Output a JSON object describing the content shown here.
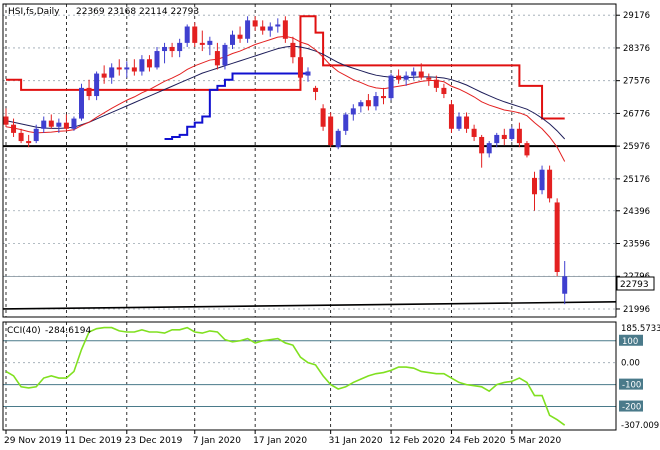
{
  "header": {
    "symbol": "HSI,fs,Daily",
    "ohlc": "22369 23168 22114 22793"
  },
  "colors": {
    "bull": "#3f3fcf",
    "bear": "#e32020",
    "ma_fast": "#e32020",
    "ma_slow": "#1e1e5a",
    "envelope_upper": "#e01010",
    "envelope_lower": "#1010d0",
    "cci": "#80e020",
    "level_line": "#4a7a8a"
  },
  "chart_data": [
    {
      "type": "candlestick",
      "title": "",
      "header": "HSI,fs,Daily  22369 23168 22114 22793",
      "ylim": [
        21800,
        29450
      ],
      "y_ticks": [
        29176,
        28376,
        27576,
        26776,
        25976,
        25176,
        24396,
        23596,
        22796,
        21996
      ],
      "current_price": 22793,
      "current_price_label": "22793",
      "x_ticks": [
        "29 Nov 2019",
        "11 Dec 2019",
        "23 Dec 2019",
        "7 Jan 2020",
        "17 Jan 2020",
        "31 Jan 2020",
        "12 Feb 2020",
        "24 Feb 2020",
        "5 Mar 2020"
      ],
      "candles": [
        {
          "o": 26700,
          "h": 26900,
          "l": 26450,
          "c": 26500
        },
        {
          "o": 26500,
          "h": 26650,
          "l": 26200,
          "c": 26300
        },
        {
          "o": 26300,
          "h": 26400,
          "l": 26050,
          "c": 26100
        },
        {
          "o": 26100,
          "h": 26250,
          "l": 25950,
          "c": 26050
        },
        {
          "o": 26100,
          "h": 26500,
          "l": 26050,
          "c": 26400
        },
        {
          "o": 26400,
          "h": 26700,
          "l": 26300,
          "c": 26600
        },
        {
          "o": 26600,
          "h": 26750,
          "l": 26400,
          "c": 26450
        },
        {
          "o": 26450,
          "h": 26650,
          "l": 26300,
          "c": 26550
        },
        {
          "o": 26550,
          "h": 26750,
          "l": 26350,
          "c": 26400
        },
        {
          "o": 26400,
          "h": 26700,
          "l": 26350,
          "c": 26650
        },
        {
          "o": 26650,
          "h": 27500,
          "l": 26600,
          "c": 27400
        },
        {
          "o": 27400,
          "h": 27600,
          "l": 27100,
          "c": 27200
        },
        {
          "o": 27200,
          "h": 27800,
          "l": 27100,
          "c": 27750
        },
        {
          "o": 27750,
          "h": 27950,
          "l": 27500,
          "c": 27650
        },
        {
          "o": 27650,
          "h": 28000,
          "l": 27500,
          "c": 27900
        },
        {
          "o": 27900,
          "h": 28100,
          "l": 27700,
          "c": 27850
        },
        {
          "o": 27850,
          "h": 28050,
          "l": 27650,
          "c": 27900
        },
        {
          "o": 27900,
          "h": 28100,
          "l": 27700,
          "c": 27800
        },
        {
          "o": 27800,
          "h": 28200,
          "l": 27700,
          "c": 28100
        },
        {
          "o": 28100,
          "h": 28200,
          "l": 27800,
          "c": 27900
        },
        {
          "o": 27900,
          "h": 28400,
          "l": 27850,
          "c": 28300
        },
        {
          "o": 28300,
          "h": 28500,
          "l": 28000,
          "c": 28400
        },
        {
          "o": 28400,
          "h": 28500,
          "l": 28150,
          "c": 28300
        },
        {
          "o": 28300,
          "h": 28600,
          "l": 28150,
          "c": 28500
        },
        {
          "o": 28500,
          "h": 28950,
          "l": 28400,
          "c": 28900
        },
        {
          "o": 28900,
          "h": 29000,
          "l": 28400,
          "c": 28500
        },
        {
          "o": 28500,
          "h": 28800,
          "l": 28300,
          "c": 28450
        },
        {
          "o": 28450,
          "h": 28650,
          "l": 28200,
          "c": 28550
        },
        {
          "o": 28300,
          "h": 28500,
          "l": 27850,
          "c": 27950
        },
        {
          "o": 27950,
          "h": 28500,
          "l": 27850,
          "c": 28450
        },
        {
          "o": 28450,
          "h": 28800,
          "l": 28350,
          "c": 28700
        },
        {
          "o": 28700,
          "h": 28900,
          "l": 28500,
          "c": 28600
        },
        {
          "o": 28600,
          "h": 29150,
          "l": 28500,
          "c": 29050
        },
        {
          "o": 29050,
          "h": 29150,
          "l": 28800,
          "c": 28900
        },
        {
          "o": 28900,
          "h": 29050,
          "l": 28700,
          "c": 28800
        },
        {
          "o": 28800,
          "h": 29000,
          "l": 28650,
          "c": 28900
        },
        {
          "o": 28900,
          "h": 29100,
          "l": 28750,
          "c": 28950
        },
        {
          "o": 29050,
          "h": 29150,
          "l": 28500,
          "c": 28600
        },
        {
          "o": 28500,
          "h": 28650,
          "l": 28000,
          "c": 28150
        },
        {
          "o": 28150,
          "h": 28300,
          "l": 27500,
          "c": 27650
        },
        {
          "o": 27700,
          "h": 27900,
          "l": 27550,
          "c": 27800
        },
        {
          "o": 27400,
          "h": 27450,
          "l": 27100,
          "c": 27300
        },
        {
          "o": 26900,
          "h": 27000,
          "l": 26350,
          "c": 26450
        },
        {
          "o": 26700,
          "h": 26800,
          "l": 25950,
          "c": 26000
        },
        {
          "o": 25950,
          "h": 26400,
          "l": 25900,
          "c": 26350
        },
        {
          "o": 26350,
          "h": 26800,
          "l": 26250,
          "c": 26750
        },
        {
          "o": 26750,
          "h": 27000,
          "l": 26600,
          "c": 26900
        },
        {
          "o": 26950,
          "h": 27100,
          "l": 26800,
          "c": 27050
        },
        {
          "o": 27100,
          "h": 27250,
          "l": 26850,
          "c": 26950
        },
        {
          "o": 26950,
          "h": 27300,
          "l": 26850,
          "c": 27200
        },
        {
          "o": 27200,
          "h": 27400,
          "l": 27000,
          "c": 27150
        },
        {
          "o": 27150,
          "h": 27750,
          "l": 27100,
          "c": 27700
        },
        {
          "o": 27700,
          "h": 27850,
          "l": 27500,
          "c": 27600
        },
        {
          "o": 27600,
          "h": 27800,
          "l": 27450,
          "c": 27700
        },
        {
          "o": 27700,
          "h": 27900,
          "l": 27600,
          "c": 27800
        },
        {
          "o": 27800,
          "h": 28000,
          "l": 27600,
          "c": 27650
        },
        {
          "o": 27650,
          "h": 27750,
          "l": 27450,
          "c": 27600
        },
        {
          "o": 27600,
          "h": 27700,
          "l": 27300,
          "c": 27400
        },
        {
          "o": 27400,
          "h": 27500,
          "l": 27150,
          "c": 27250
        },
        {
          "o": 27000,
          "h": 27100,
          "l": 26300,
          "c": 26400
        },
        {
          "o": 26400,
          "h": 26800,
          "l": 26350,
          "c": 26700
        },
        {
          "o": 26700,
          "h": 26800,
          "l": 26300,
          "c": 26400
        },
        {
          "o": 26400,
          "h": 26500,
          "l": 26100,
          "c": 26200
        },
        {
          "o": 26200,
          "h": 26250,
          "l": 25450,
          "c": 25800
        },
        {
          "o": 25800,
          "h": 26100,
          "l": 25700,
          "c": 26050
        },
        {
          "o": 26050,
          "h": 26300,
          "l": 25950,
          "c": 26250
        },
        {
          "o": 26250,
          "h": 26400,
          "l": 26000,
          "c": 26150
        },
        {
          "o": 26150,
          "h": 26450,
          "l": 26100,
          "c": 26400
        },
        {
          "o": 26400,
          "h": 26550,
          "l": 25950,
          "c": 26050
        },
        {
          "o": 26050,
          "h": 26100,
          "l": 25700,
          "c": 25750
        },
        {
          "o": 25200,
          "h": 25350,
          "l": 24400,
          "c": 24800
        },
        {
          "o": 24900,
          "h": 25500,
          "l": 24800,
          "c": 25400
        },
        {
          "o": 25400,
          "h": 25500,
          "l": 24600,
          "c": 24700
        },
        {
          "o": 24600,
          "h": 24700,
          "l": 22800,
          "c": 22900
        },
        {
          "o": 22369,
          "h": 23168,
          "l": 22114,
          "c": 22793
        }
      ],
      "ma_fast": [
        26450,
        26420,
        26380,
        26330,
        26300,
        26310,
        26320,
        26340,
        26350,
        26380,
        26480,
        26560,
        26680,
        26790,
        26900,
        27000,
        27100,
        27180,
        27280,
        27360,
        27460,
        27560,
        27640,
        27730,
        27850,
        27940,
        28010,
        28080,
        28100,
        28160,
        28240,
        28300,
        28380,
        28460,
        28520,
        28580,
        28640,
        28660,
        28620,
        28520,
        28460,
        28330,
        28150,
        27950,
        27800,
        27700,
        27600,
        27530,
        27450,
        27400,
        27380,
        27410,
        27440,
        27470,
        27520,
        27560,
        27580,
        27580,
        27550,
        27440,
        27370,
        27280,
        27180,
        27060,
        26980,
        26920,
        26860,
        26830,
        26790,
        26720,
        26550,
        26400,
        26200,
        25950,
        25600
      ],
      "ma_slow": [
        26600,
        26560,
        26520,
        26480,
        26440,
        26420,
        26410,
        26410,
        26420,
        26440,
        26500,
        26560,
        26640,
        26720,
        26800,
        26880,
        26960,
        27040,
        27120,
        27200,
        27280,
        27360,
        27440,
        27520,
        27600,
        27680,
        27760,
        27820,
        27880,
        27940,
        28000,
        28060,
        28120,
        28180,
        28240,
        28300,
        28360,
        28400,
        28420,
        28400,
        28360,
        28300,
        28220,
        28120,
        28020,
        27940,
        27880,
        27820,
        27760,
        27710,
        27680,
        27660,
        27650,
        27650,
        27660,
        27670,
        27670,
        27660,
        27640,
        27600,
        27540,
        27470,
        27380,
        27290,
        27210,
        27130,
        27060,
        27000,
        26940,
        26880,
        26780,
        26660,
        26520,
        26350,
        26150
      ],
      "envelope_upper": [
        27600,
        27600,
        27350,
        27350,
        27350,
        27350,
        27350,
        27350,
        27350,
        27350,
        27350,
        27350,
        27350,
        27350,
        27350,
        27350,
        27350,
        27350,
        27350,
        27350,
        27350,
        27350,
        27350,
        27350,
        27350,
        27350,
        27350,
        27350,
        27350,
        27350,
        27350,
        27350,
        27350,
        27350,
        27350,
        27350,
        27350,
        27350,
        27350,
        29150,
        29150,
        28750,
        27950,
        27950,
        27950,
        27950,
        27950,
        27950,
        27950,
        27950,
        27950,
        27950,
        27950,
        27950,
        27950,
        27950,
        27950,
        27950,
        27950,
        27950,
        27950,
        27950,
        27950,
        27950,
        27950,
        27950,
        27950,
        27950,
        27450,
        27450,
        27450,
        26650,
        26650,
        26650,
        26650
      ],
      "envelope_lower": [
        null,
        null,
        null,
        null,
        null,
        null,
        null,
        null,
        null,
        null,
        null,
        null,
        null,
        null,
        null,
        null,
        null,
        null,
        null,
        null,
        null,
        26150,
        26200,
        26250,
        26450,
        26550,
        26700,
        27350,
        27450,
        27600,
        27750,
        27750,
        27750,
        27750,
        27750,
        27750,
        27750,
        27750,
        27750,
        27750,
        27750,
        null,
        null,
        null,
        null,
        null,
        null,
        null,
        null,
        null,
        null,
        null,
        null,
        null,
        null,
        null,
        null,
        null,
        null,
        null,
        null,
        null,
        null,
        null,
        null,
        null,
        null,
        null,
        null,
        null,
        null,
        null,
        null,
        null,
        null
      ],
      "horizontal_levels": [
        25976,
        21996
      ],
      "lower_trend_line": {
        "from": 21996,
        "to": 22170
      }
    },
    {
      "type": "line",
      "title": "",
      "label": "CCI(40)",
      "current_value": "-284.6194",
      "ylim": [
        -307.009,
        185.5733
      ],
      "y_ticks_labels": [
        "185.5733",
        "100",
        "0.00",
        "-100",
        "-200",
        "-307.009"
      ],
      "levels": [
        100,
        -100,
        -200
      ],
      "values": [
        -40,
        -60,
        -110,
        -115,
        -110,
        -70,
        -60,
        -70,
        -70,
        -40,
        60,
        140,
        155,
        160,
        160,
        145,
        140,
        140,
        150,
        140,
        140,
        135,
        150,
        150,
        160,
        140,
        135,
        145,
        140,
        105,
        95,
        100,
        110,
        90,
        100,
        105,
        110,
        90,
        80,
        25,
        0,
        -10,
        -60,
        -100,
        -120,
        -110,
        -90,
        -75,
        -60,
        -50,
        -45,
        -35,
        -20,
        -20,
        -25,
        -40,
        -45,
        -50,
        -50,
        -70,
        -90,
        -100,
        -105,
        -110,
        -130,
        -100,
        -90,
        -85,
        -70,
        -90,
        -150,
        -150,
        -240,
        -260,
        -285
      ]
    }
  ]
}
